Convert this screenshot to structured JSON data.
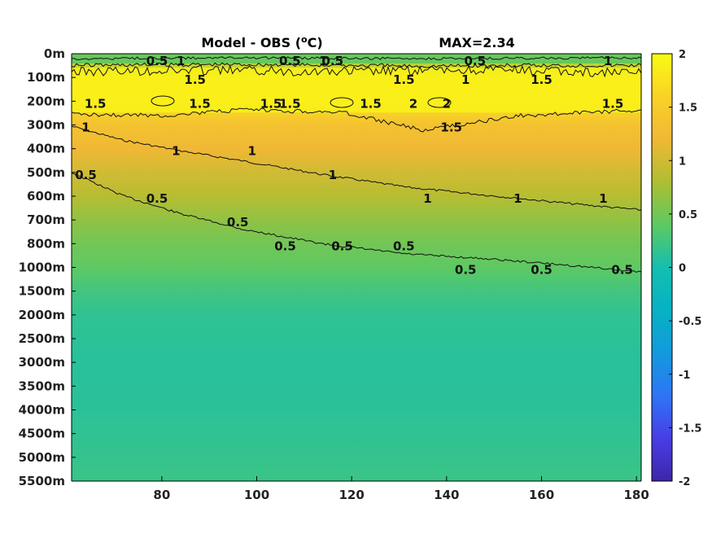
{
  "chart_data": {
    "type": "heatmap",
    "title": "Model - OBS (",
    "title_unit_sup": "o",
    "title_unit_end": "C)",
    "max_label": "MAX=2.34",
    "x_ticks": [
      80,
      100,
      120,
      140,
      160,
      180
    ],
    "xlim": [
      61,
      181
    ],
    "y_tick_labels": [
      "0m",
      "100m",
      "200m",
      "300m",
      "400m",
      "500m",
      "600m",
      "700m",
      "800m",
      "1000m",
      "1500m",
      "2000m",
      "2500m",
      "3000m",
      "3500m",
      "4000m",
      "4500m",
      "5000m",
      "5500m"
    ],
    "colorbar": {
      "ticks": [
        2,
        1.5,
        1,
        0.5,
        0,
        -0.5,
        -1,
        -1.5,
        -2
      ],
      "tick_labels": [
        "2",
        "1.5",
        "1",
        "0.5",
        "0",
        "-0.5",
        "-1",
        "-1.5",
        "-2"
      ],
      "range": [
        -2,
        2
      ],
      "colormap": "parula"
    },
    "contour_levels": [
      0.5,
      1,
      1.5,
      2
    ],
    "contour_labels": [
      {
        "x": 79,
        "depth": "0m",
        "text": "0.5"
      },
      {
        "x": 84,
        "depth": "0m",
        "text": "1"
      },
      {
        "x": 107,
        "depth": "0m",
        "text": "0.5"
      },
      {
        "x": 116,
        "depth": "0m",
        "text": "0.5"
      },
      {
        "x": 114,
        "depth": "0m",
        "text": "1"
      },
      {
        "x": 146,
        "depth": "0m",
        "text": "0.5"
      },
      {
        "x": 144,
        "depth": "100m",
        "text": "1"
      },
      {
        "x": 174,
        "depth": "0m",
        "text": "1"
      },
      {
        "x": 87,
        "depth": "100m",
        "text": "1.5"
      },
      {
        "x": 131,
        "depth": "100m",
        "text": "1.5"
      },
      {
        "x": 160,
        "depth": "100m",
        "text": "1.5"
      },
      {
        "x": 66,
        "depth": "200m",
        "text": "1.5"
      },
      {
        "x": 88,
        "depth": "200m",
        "text": "1.5"
      },
      {
        "x": 103,
        "depth": "200m",
        "text": "1.5"
      },
      {
        "x": 107,
        "depth": "200m",
        "text": "1.5"
      },
      {
        "x": 124,
        "depth": "200m",
        "text": "1.5"
      },
      {
        "x": 133,
        "depth": "200m",
        "text": "2"
      },
      {
        "x": 140,
        "depth": "200m",
        "text": "2"
      },
      {
        "x": 141,
        "depth": "300m",
        "text": "1.5"
      },
      {
        "x": 175,
        "depth": "200m",
        "text": "1.5"
      },
      {
        "x": 64,
        "depth": "300m",
        "text": "1"
      },
      {
        "x": 83,
        "depth": "400m",
        "text": "1"
      },
      {
        "x": 99,
        "depth": "400m",
        "text": "1"
      },
      {
        "x": 116,
        "depth": "500m",
        "text": "1"
      },
      {
        "x": 136,
        "depth": "600m",
        "text": "1"
      },
      {
        "x": 155,
        "depth": "600m",
        "text": "1"
      },
      {
        "x": 173,
        "depth": "600m",
        "text": "1"
      },
      {
        "x": 64,
        "depth": "500m",
        "text": "0.5"
      },
      {
        "x": 79,
        "depth": "600m",
        "text": "0.5"
      },
      {
        "x": 96,
        "depth": "700m",
        "text": "0.5"
      },
      {
        "x": 106,
        "depth": "800m",
        "text": "0.5"
      },
      {
        "x": 118,
        "depth": "800m",
        "text": "0.5"
      },
      {
        "x": 131,
        "depth": "800m",
        "text": "0.5"
      },
      {
        "x": 144,
        "depth": "1000m",
        "text": "0.5"
      },
      {
        "x": 160,
        "depth": "1000m",
        "text": "0.5"
      },
      {
        "x": 177,
        "depth": "1000m",
        "text": "0.5"
      }
    ],
    "depth_profile": [
      {
        "depth": "0m",
        "value": 0.6
      },
      {
        "depth": "100m",
        "value": 1.8
      },
      {
        "depth": "200m",
        "value": 1.75
      },
      {
        "depth": "300m",
        "value": 1.35
      },
      {
        "depth": "400m",
        "value": 1.2
      },
      {
        "depth": "500m",
        "value": 1.0
      },
      {
        "depth": "600m",
        "value": 0.85
      },
      {
        "depth": "700m",
        "value": 0.65
      },
      {
        "depth": "800m",
        "value": 0.5
      },
      {
        "depth": "1000m",
        "value": 0.4
      },
      {
        "depth": "1500m",
        "value": 0.25
      },
      {
        "depth": "2000m",
        "value": 0.15
      },
      {
        "depth": "3000m",
        "value": 0.1
      },
      {
        "depth": "4000m",
        "value": 0.12
      },
      {
        "depth": "5500m",
        "value": 0.2
      }
    ]
  }
}
